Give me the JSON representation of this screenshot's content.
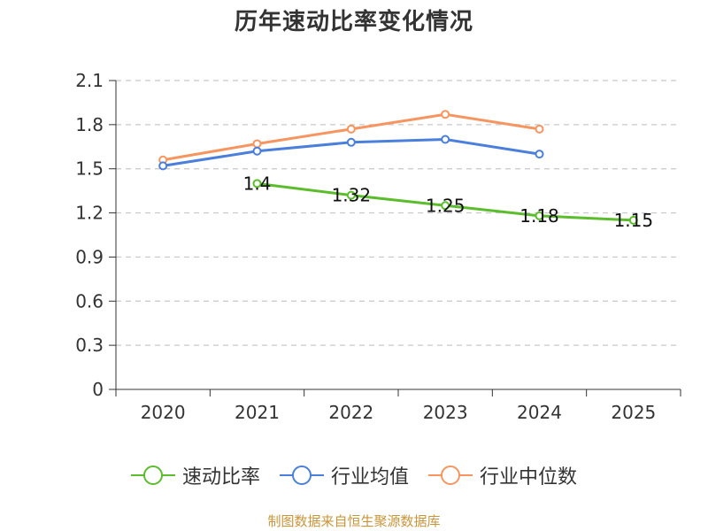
{
  "chart_data": {
    "type": "line",
    "title": "历年速动比率变化情况",
    "categories": [
      "2020",
      "2021",
      "2022",
      "2023",
      "2024",
      "2025"
    ],
    "ylim": [
      0,
      2.1
    ],
    "yticks": [
      0,
      0.3,
      0.6,
      0.9,
      1.2,
      1.5,
      1.8,
      2.1
    ],
    "ytick_labels": [
      "0",
      "0.3",
      "0.6",
      "0.9",
      "1.2",
      "1.5",
      "1.8",
      "2.1"
    ],
    "grid": true,
    "legend_position": "bottom",
    "series": [
      {
        "name": "速动比率",
        "color": "#5bbd2b",
        "values": [
          null,
          1.4,
          1.32,
          1.25,
          1.18,
          1.15
        ],
        "labels": [
          null,
          "1.4",
          "1.32",
          "1.25",
          "1.18",
          "1.15"
        ]
      },
      {
        "name": "行业均值",
        "color": "#4a7fdc",
        "values": [
          1.52,
          1.62,
          1.68,
          1.7,
          1.6,
          null
        ]
      },
      {
        "name": "行业中位数",
        "color": "#f79560",
        "values": [
          1.56,
          1.67,
          1.77,
          1.87,
          1.77,
          null
        ]
      }
    ]
  },
  "legend": {
    "items": [
      {
        "label": "速动比率",
        "color": "#5bbd2b"
      },
      {
        "label": "行业均值",
        "color": "#4a7fdc"
      },
      {
        "label": "行业中位数",
        "color": "#f79560"
      }
    ]
  },
  "footer": {
    "source": "制图数据来自恒生聚源数据库"
  }
}
